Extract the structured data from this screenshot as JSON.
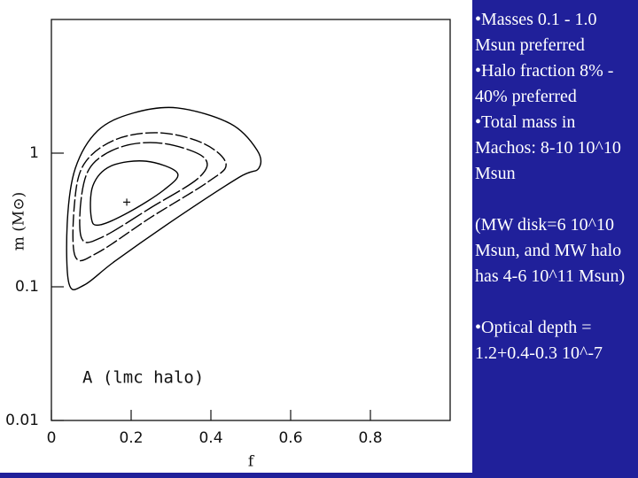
{
  "chart_data": {
    "type": "contour",
    "xlabel": "f",
    "ylabel": "m (M⊙)",
    "annotation": "A (lmc halo)",
    "xlim": [
      0,
      1
    ],
    "xticks": [
      0,
      0.2,
      0.4,
      0.6,
      0.8
    ],
    "ylim": [
      0.01,
      10
    ],
    "yticks": [
      0.01,
      0.1,
      1
    ],
    "log_y": true,
    "series": [
      {
        "color": "#000000",
        "dash": "none",
        "x": [
          0.044,
          0.04,
          0.06,
          0.116,
          0.204,
          0.316,
          0.449,
          0.516,
          0.52,
          0.471,
          0.316,
          0.16,
          0.082
        ],
        "y": [
          0.106,
          0.31,
          0.77,
          1.47,
          1.99,
          2.18,
          1.66,
          1.05,
          0.77,
          0.66,
          0.33,
          0.156,
          0.103
        ]
      },
      {
        "color": "#000000",
        "dash": "14 3",
        "x": [
          0.06,
          0.058,
          0.082,
          0.16,
          0.271,
          0.382,
          0.438,
          0.393,
          0.249,
          0.116
        ],
        "y": [
          0.168,
          0.42,
          0.83,
          1.26,
          1.42,
          1.18,
          0.83,
          0.61,
          0.33,
          0.18
        ]
      },
      {
        "color": "#000000",
        "dash": "22 3",
        "x": [
          0.076,
          0.076,
          0.104,
          0.182,
          0.282,
          0.382,
          0.371,
          0.249,
          0.127
        ],
        "y": [
          0.23,
          0.49,
          0.83,
          1.13,
          1.18,
          0.93,
          0.66,
          0.39,
          0.235
        ]
      },
      {
        "color": "#000000",
        "dash": "none",
        "x": [
          0.1,
          0.104,
          0.149,
          0.238,
          0.316,
          0.282,
          0.193,
          0.12
        ],
        "y": [
          0.33,
          0.57,
          0.8,
          0.87,
          0.71,
          0.53,
          0.36,
          0.29
        ]
      }
    ],
    "best_fit": {
      "x": 0.189,
      "y": 0.43
    }
  },
  "text": {
    "paragraphs": [
      "•Masses 0.1 - 1.0 Msun preferred",
      "•Halo fraction 8% - 40% preferred",
      "•Total mass in Machos: 8-10 10^10 Msun",
      "(MW disk=6 10^10 Msun, and MW halo has 4-6 10^11 Msun)",
      "•Optical depth = 1.2+0.4-0.3 10^-7"
    ]
  }
}
